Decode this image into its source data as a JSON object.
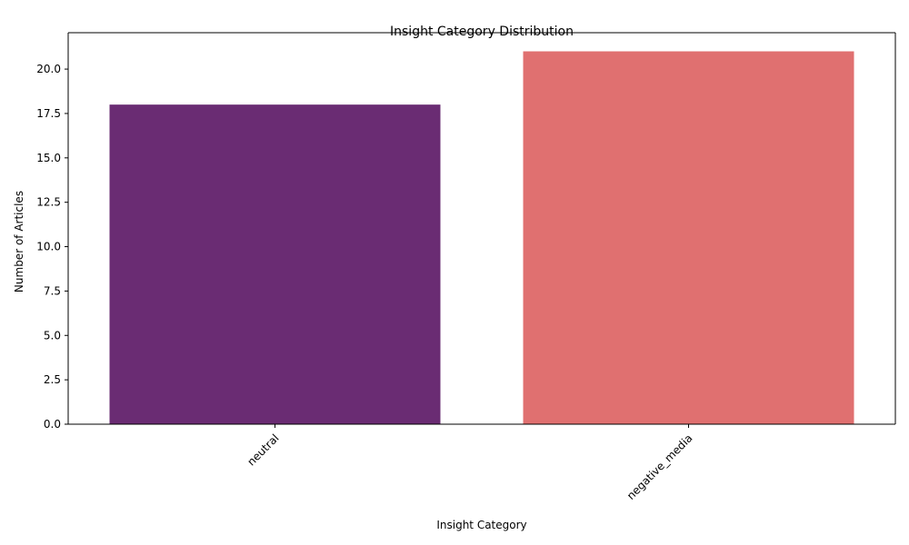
{
  "chart_data": {
    "type": "bar",
    "title": "Insight Category Distribution",
    "xlabel": "Insight Category",
    "ylabel": "Number of Articles",
    "categories": [
      "neutral",
      "negative_media"
    ],
    "values": [
      18,
      21
    ],
    "colors": [
      "#6a2c73",
      "#e07070"
    ],
    "ylim": [
      0,
      22.05
    ],
    "yticks": [
      "0.0",
      "2.5",
      "5.0",
      "7.5",
      "10.0",
      "12.5",
      "15.0",
      "17.5",
      "20.0"
    ],
    "xtick_rotation": 45,
    "grid": false,
    "legend": "none"
  }
}
